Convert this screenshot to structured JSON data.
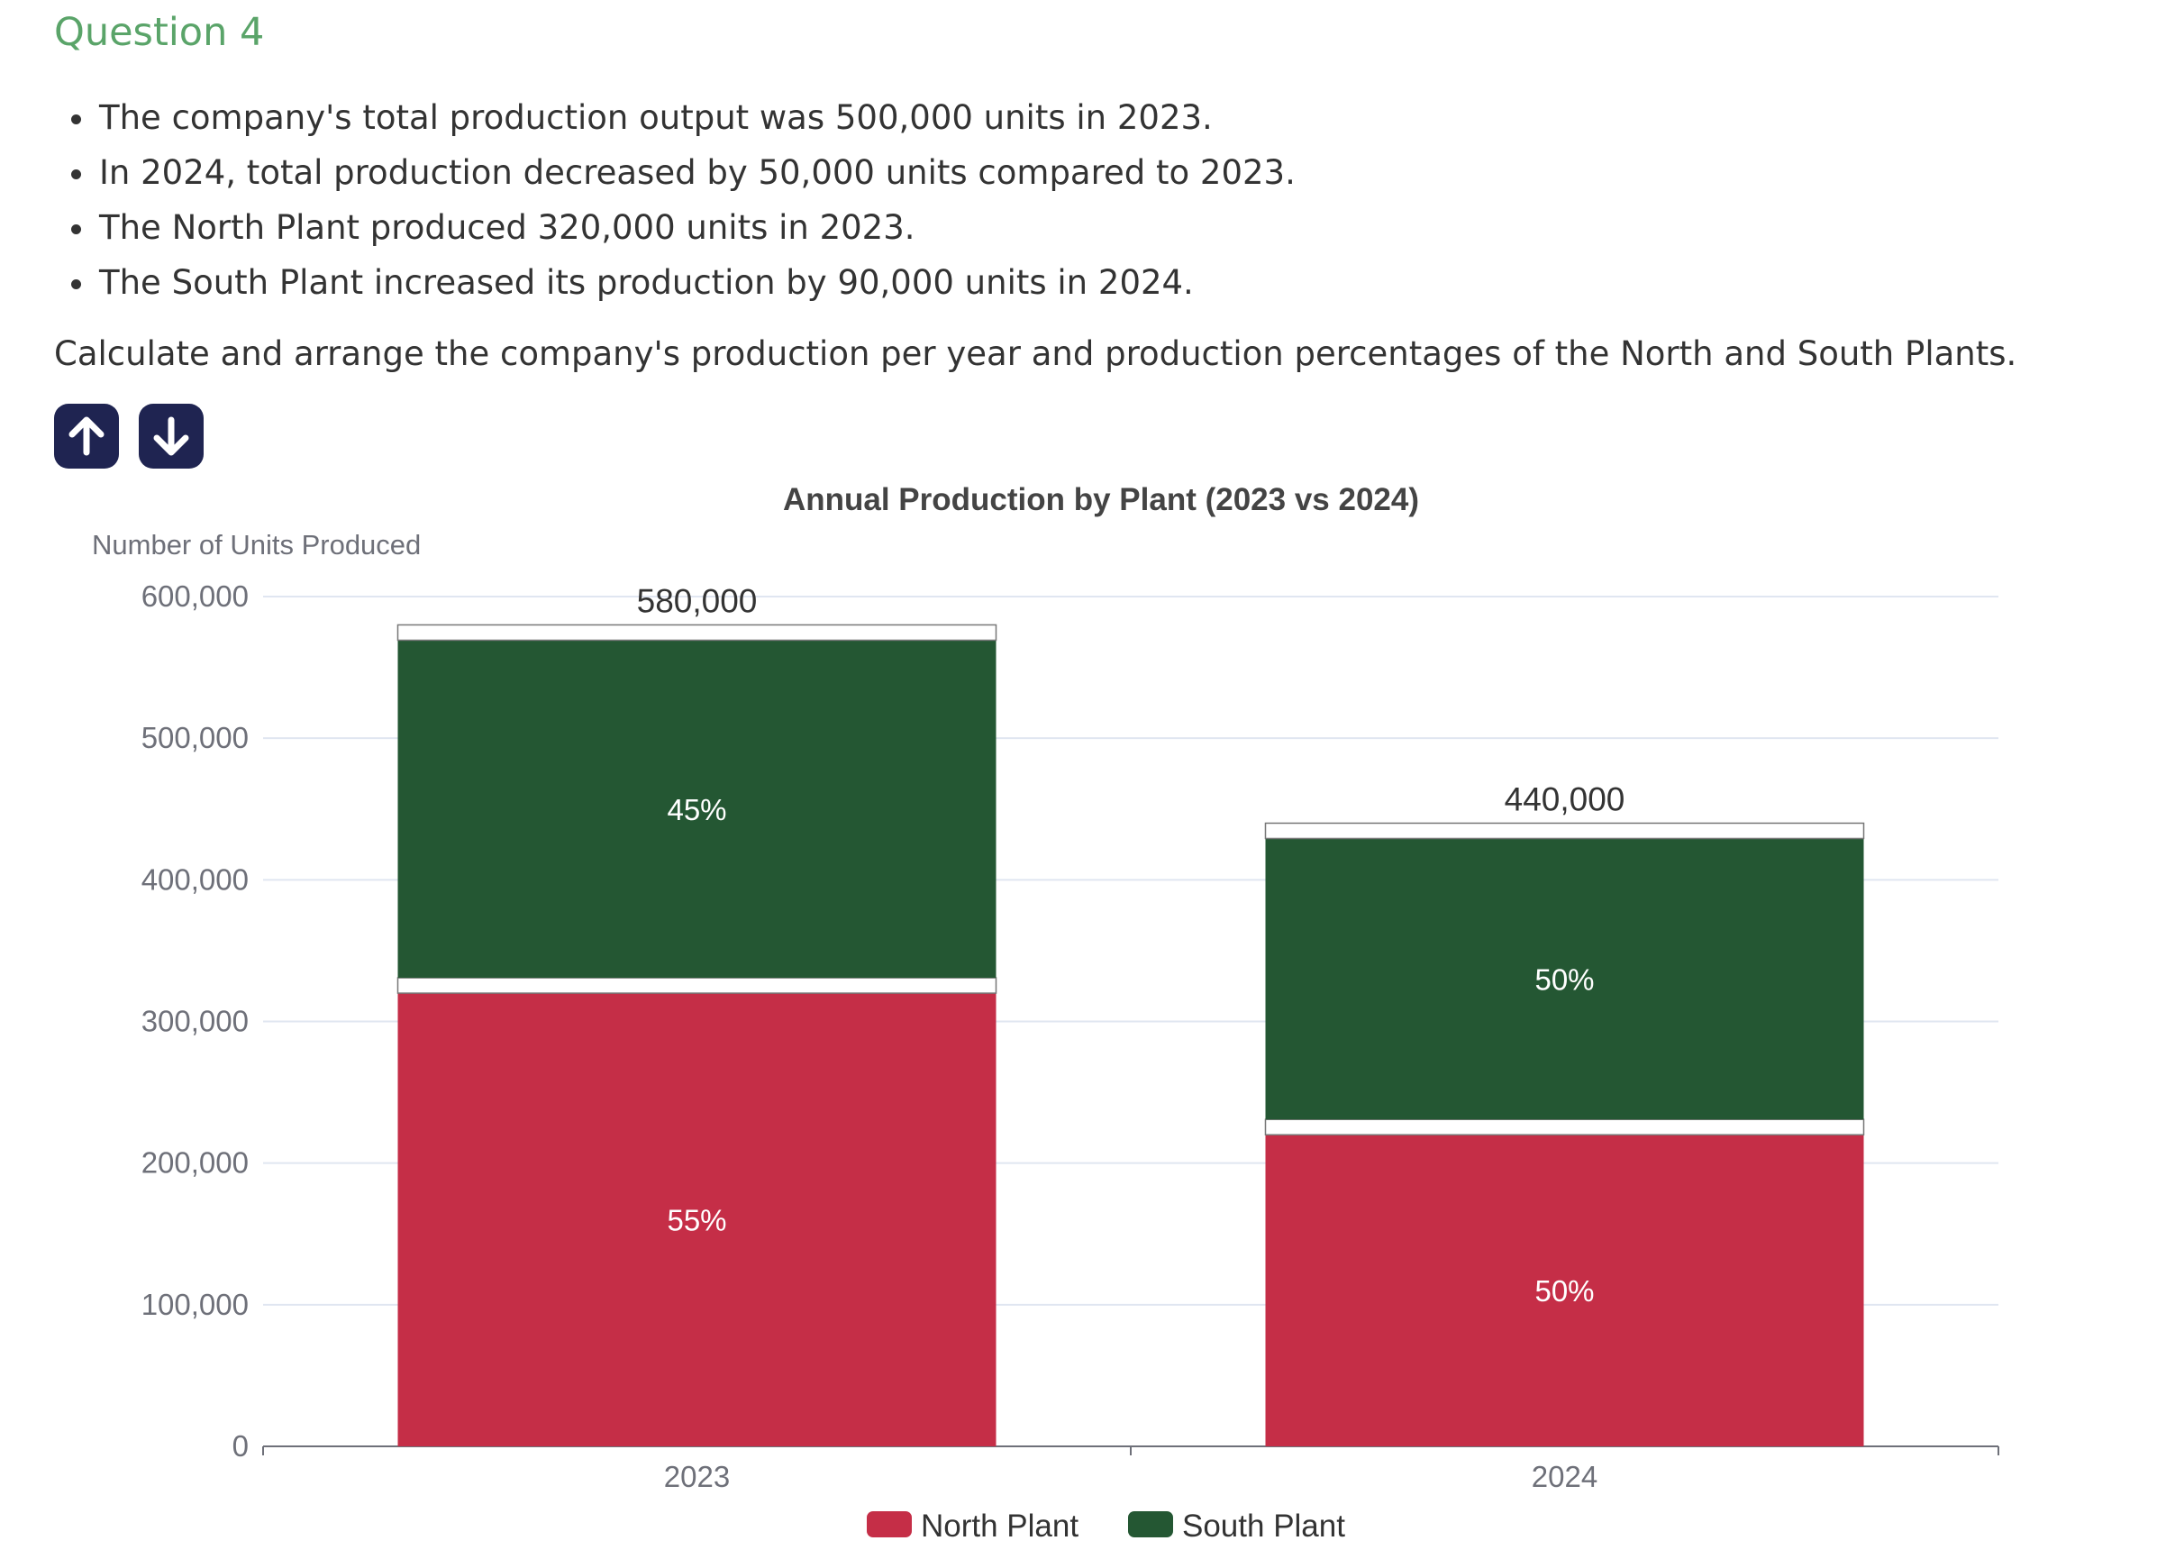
{
  "question": {
    "title": "Question 4",
    "bullets": [
      "The company's total production output was 500,000 units in 2023.",
      "In 2024, total production decreased by 50,000 units compared to 2023.",
      "The North Plant produced 320,000 units in 2023.",
      "The South Plant increased its production by 90,000 units in 2024."
    ],
    "instruction": "Calculate and arrange the company's production per year and production percentages of the North and South Plants."
  },
  "controls": {
    "up_icon": "arrow-up-icon",
    "down_icon": "arrow-down-icon",
    "button_color": "#1f2451"
  },
  "chart_data": {
    "type": "bar",
    "stacked": true,
    "title": "Annual Production by Plant (2023 vs 2024)",
    "ylabel": "Number of Units Produced",
    "xlabel": "",
    "categories": [
      "2023",
      "2024"
    ],
    "ylim": [
      0,
      600000
    ],
    "yticks": [
      0,
      100000,
      200000,
      300000,
      400000,
      500000,
      600000
    ],
    "ytick_labels": [
      "0",
      "100,000",
      "200,000",
      "300,000",
      "400,000",
      "500,000",
      "600,000"
    ],
    "grid": true,
    "legend_position": "bottom-center",
    "series": [
      {
        "name": "North Plant",
        "color": "#c52e47",
        "values": [
          320000,
          220000
        ],
        "labels": [
          "55%",
          "50%"
        ]
      },
      {
        "name": "South Plant",
        "color": "#245733",
        "values": [
          260000,
          220000
        ],
        "labels": [
          "45%",
          "50%"
        ]
      }
    ],
    "totals": [
      580000,
      440000
    ],
    "total_labels": [
      "580,000",
      "440,000"
    ]
  }
}
